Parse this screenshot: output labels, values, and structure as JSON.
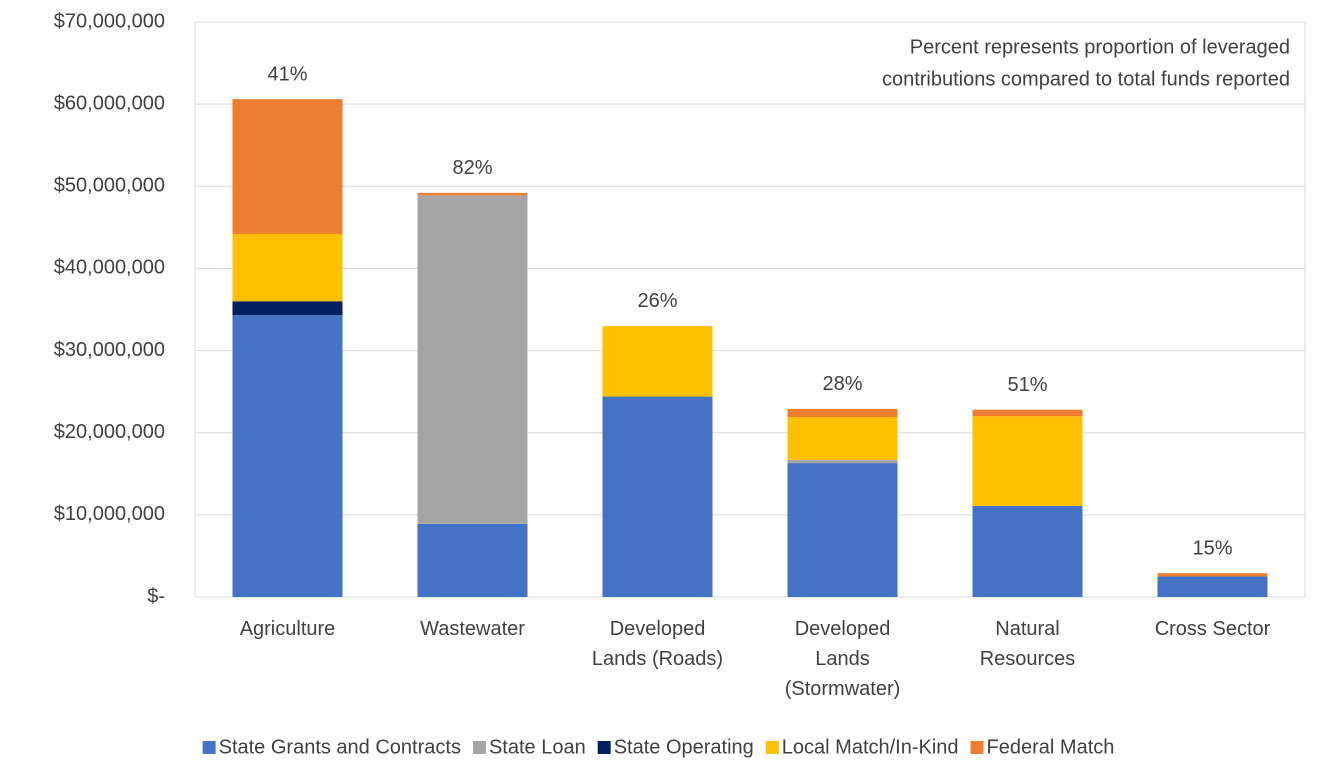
{
  "chart_data": {
    "type": "stacked_bar",
    "categories": [
      "Agriculture",
      "Wastewater",
      "Developed Lands (Roads)",
      "Developed Lands (Stormwater)",
      "Natural Resources",
      "Cross Sector"
    ],
    "series": [
      {
        "name": "State Grants and Contracts",
        "color": "#4472c4",
        "values": [
          34300000,
          8900000,
          24400000,
          16300000,
          11100000,
          2500000
        ]
      },
      {
        "name": "State Loan",
        "color": "#a5a5a5",
        "values": [
          0,
          40000000,
          0,
          400000,
          0,
          0
        ]
      },
      {
        "name": "State Operating",
        "color": "#002060",
        "values": [
          1700000,
          0,
          0,
          0,
          0,
          0
        ]
      },
      {
        "name": "Local Match/In-Kind",
        "color": "#ffc000",
        "values": [
          8200000,
          0,
          8600000,
          5200000,
          10900000,
          0
        ]
      },
      {
        "name": "Federal Match",
        "color": "#ed7d31",
        "values": [
          16400000,
          300000,
          0,
          1000000,
          800000,
          400000
        ]
      }
    ],
    "percent_labels": {
      "values": [
        41,
        82,
        26,
        28,
        51,
        15
      ],
      "value_labels": [
        "41%",
        "82%",
        "26%",
        "28%",
        "51%",
        "15%"
      ]
    },
    "annotation": [
      "Percent represents proportion of leveraged",
      "contributions compared to total funds reported"
    ],
    "ylim": [
      0,
      70000000
    ],
    "yticks": [
      {
        "value": 0,
        "label": "$-"
      },
      {
        "value": 10000000,
        "label": "$10,000,000"
      },
      {
        "value": 20000000,
        "label": "$20,000,000"
      },
      {
        "value": 30000000,
        "label": "$30,000,000"
      },
      {
        "value": 40000000,
        "label": "$40,000,000"
      },
      {
        "value": 50000000,
        "label": "$50,000,000"
      },
      {
        "value": 60000000,
        "label": "$60,000,000"
      },
      {
        "value": 70000000,
        "label": "$70,000,000"
      }
    ],
    "grid": true,
    "legend": "bottom"
  }
}
